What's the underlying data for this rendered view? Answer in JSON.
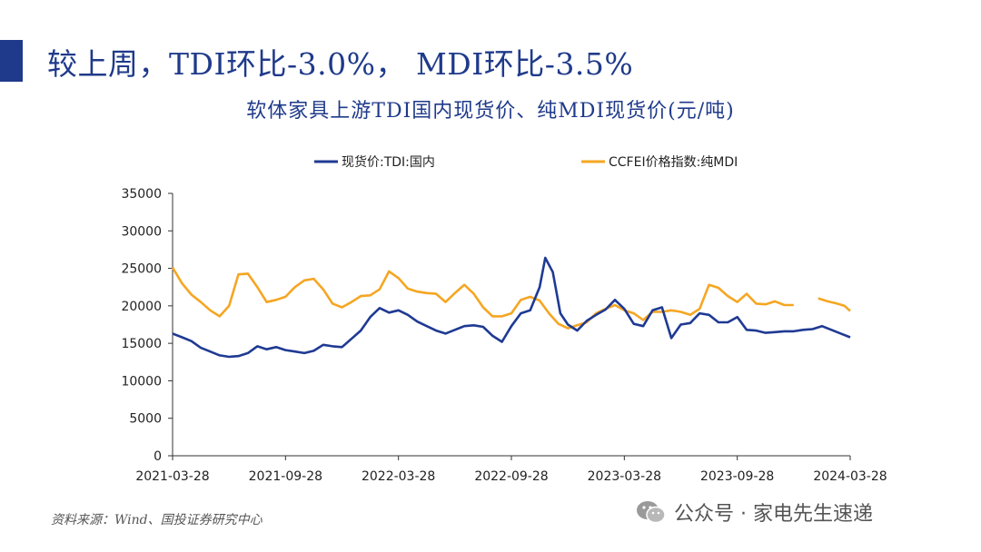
{
  "slide": {
    "title": "较上周，TDI环比-3.0%， MDI环比-3.5%",
    "source": "资料来源：Wind、国投证券研究中心",
    "watermark": "公众号 · 家电先生速递",
    "watermark_icon": "wechat-icon"
  },
  "chart_data": {
    "type": "line",
    "title": "软体家具上游TDI国内现货价、纯MDI现货价(元/吨)",
    "xlabel": "",
    "ylabel": "",
    "ylim": [
      0,
      35000
    ],
    "yticks": [
      0,
      5000,
      10000,
      15000,
      20000,
      25000,
      30000,
      35000
    ],
    "xticks": [
      "2021-03-28",
      "2021-09-28",
      "2022-03-28",
      "2022-09-28",
      "2023-03-28",
      "2023-09-28",
      "2024-03-28"
    ],
    "x_range_months": [
      0,
      36
    ],
    "legend_position": "top",
    "grid": false,
    "series": [
      {
        "name": "现货价:TDI:国内",
        "color": "#1f3a93",
        "points": [
          [
            0,
            16300
          ],
          [
            0.5,
            15800
          ],
          [
            1,
            15300
          ],
          [
            1.5,
            14400
          ],
          [
            2,
            13900
          ],
          [
            2.5,
            13400
          ],
          [
            3,
            13200
          ],
          [
            3.5,
            13300
          ],
          [
            4,
            13700
          ],
          [
            4.5,
            14600
          ],
          [
            5,
            14200
          ],
          [
            5.5,
            14500
          ],
          [
            6,
            14100
          ],
          [
            6.5,
            13900
          ],
          [
            7,
            13700
          ],
          [
            7.5,
            14000
          ],
          [
            8,
            14800
          ],
          [
            8.5,
            14600
          ],
          [
            9,
            14500
          ],
          [
            9.5,
            15600
          ],
          [
            10,
            16700
          ],
          [
            10.5,
            18500
          ],
          [
            11,
            19700
          ],
          [
            11.5,
            19100
          ],
          [
            12,
            19400
          ],
          [
            12.5,
            18800
          ],
          [
            13,
            17900
          ],
          [
            13.5,
            17300
          ],
          [
            14,
            16700
          ],
          [
            14.5,
            16300
          ],
          [
            15,
            16800
          ],
          [
            15.5,
            17300
          ],
          [
            16,
            17400
          ],
          [
            16.5,
            17200
          ],
          [
            17,
            16000
          ],
          [
            17.5,
            15200
          ],
          [
            18,
            17300
          ],
          [
            18.5,
            19000
          ],
          [
            19,
            19400
          ],
          [
            19.5,
            22500
          ],
          [
            19.8,
            26400
          ],
          [
            20.2,
            24500
          ],
          [
            20.6,
            19000
          ],
          [
            21,
            17500
          ],
          [
            21.5,
            16700
          ],
          [
            22,
            18000
          ],
          [
            22.5,
            18800
          ],
          [
            23,
            19500
          ],
          [
            23.5,
            20800
          ],
          [
            24,
            19600
          ],
          [
            24.5,
            17600
          ],
          [
            25,
            17300
          ],
          [
            25.5,
            19400
          ],
          [
            26,
            19800
          ],
          [
            26.5,
            15700
          ],
          [
            27,
            17500
          ],
          [
            27.5,
            17700
          ],
          [
            28,
            19000
          ],
          [
            28.5,
            18800
          ],
          [
            29,
            17800
          ],
          [
            29.5,
            17800
          ],
          [
            30,
            18500
          ],
          [
            30.5,
            16800
          ],
          [
            31,
            16700
          ],
          [
            31.5,
            16400
          ],
          [
            32,
            16500
          ],
          [
            32.5,
            16600
          ],
          [
            33,
            16600
          ],
          [
            33.5,
            16800
          ],
          [
            34,
            16900
          ],
          [
            34.5,
            17300
          ],
          [
            35,
            16800
          ],
          [
            35.5,
            16300
          ],
          [
            36,
            15800
          ]
        ]
      },
      {
        "name": "CCFEI价格指数:纯MDI",
        "color": "#f5a623",
        "points": [
          [
            0,
            25100
          ],
          [
            0.5,
            23000
          ],
          [
            1,
            21500
          ],
          [
            1.5,
            20500
          ],
          [
            2,
            19400
          ],
          [
            2.5,
            18600
          ],
          [
            3,
            20000
          ],
          [
            3.5,
            24200
          ],
          [
            4,
            24300
          ],
          [
            4.5,
            22500
          ],
          [
            5,
            20500
          ],
          [
            5.5,
            20800
          ],
          [
            6,
            21200
          ],
          [
            6.5,
            22500
          ],
          [
            7,
            23400
          ],
          [
            7.5,
            23600
          ],
          [
            8,
            22200
          ],
          [
            8.5,
            20300
          ],
          [
            9,
            19800
          ],
          [
            9.5,
            20500
          ],
          [
            10,
            21300
          ],
          [
            10.5,
            21400
          ],
          [
            11,
            22200
          ],
          [
            11.5,
            24600
          ],
          [
            12,
            23700
          ],
          [
            12.5,
            22300
          ],
          [
            13,
            21900
          ],
          [
            13.5,
            21700
          ],
          [
            14,
            21600
          ],
          [
            14.5,
            20500
          ],
          [
            15,
            21700
          ],
          [
            15.5,
            22800
          ],
          [
            16,
            21600
          ],
          [
            16.5,
            19800
          ],
          [
            17,
            18600
          ],
          [
            17.5,
            18600
          ],
          [
            18,
            19000
          ],
          [
            18.5,
            20800
          ],
          [
            19,
            21200
          ],
          [
            19.5,
            20700
          ],
          [
            20,
            19000
          ],
          [
            20.5,
            17600
          ],
          [
            21,
            17000
          ],
          [
            21.5,
            17400
          ],
          [
            22,
            17800
          ],
          [
            22.5,
            19000
          ],
          [
            23,
            19600
          ],
          [
            23.5,
            20100
          ],
          [
            24,
            19400
          ],
          [
            24.5,
            19000
          ],
          [
            25,
            18100
          ],
          [
            25.5,
            19200
          ],
          [
            26,
            19200
          ],
          [
            26.5,
            19400
          ],
          [
            27,
            19200
          ],
          [
            27.5,
            18800
          ],
          [
            28,
            19600
          ],
          [
            28.5,
            22800
          ],
          [
            29,
            22400
          ],
          [
            29.5,
            21300
          ],
          [
            30,
            20500
          ],
          [
            30.5,
            21600
          ],
          [
            31,
            20300
          ],
          [
            31.5,
            20200
          ],
          [
            32,
            20600
          ],
          [
            32.5,
            20100
          ],
          [
            33,
            20100
          ]
        ],
        "segment2": [
          [
            34.3,
            21000
          ],
          [
            34.8,
            20600
          ],
          [
            35.3,
            20300
          ],
          [
            35.7,
            20000
          ],
          [
            36,
            19300
          ]
        ]
      }
    ]
  }
}
